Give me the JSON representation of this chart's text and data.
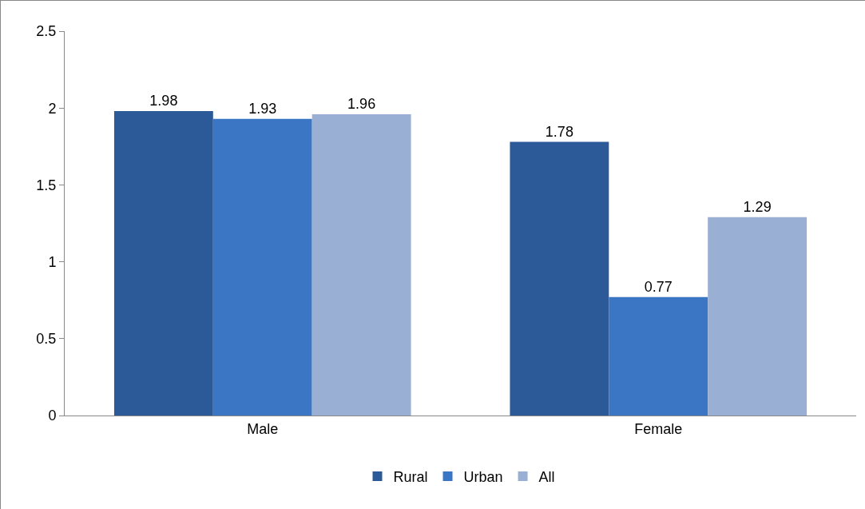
{
  "chart_data": {
    "type": "bar",
    "categories": [
      "Male",
      "Female"
    ],
    "series": [
      {
        "name": "Rural",
        "color": "#2c5a98",
        "values": [
          1.98,
          1.78
        ]
      },
      {
        "name": "Urban",
        "color": "#3a76c4",
        "values": [
          1.93,
          0.77
        ]
      },
      {
        "name": "All",
        "color": "#9aafd4",
        "values": [
          1.96,
          1.29
        ]
      }
    ],
    "ylim": [
      0,
      2.5
    ],
    "yticks": [
      0,
      0.5,
      1,
      1.5,
      2,
      2.5
    ],
    "grid": false,
    "legend": "bottom",
    "data_labels": true
  }
}
